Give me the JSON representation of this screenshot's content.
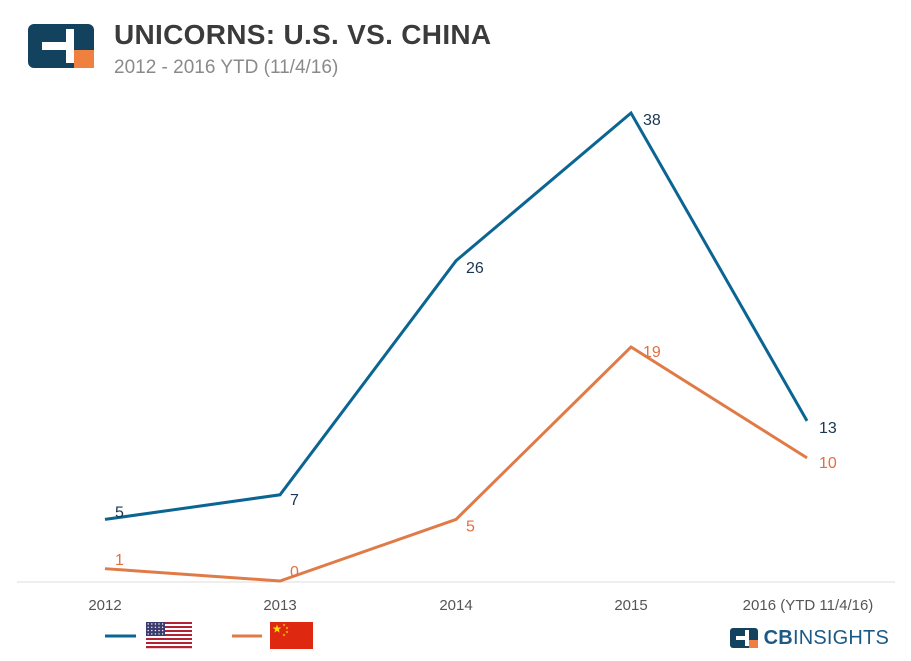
{
  "header": {
    "title": "UNICORNS: U.S. VS. CHINA",
    "subtitle": "2012 - 2016 YTD (11/4/16)"
  },
  "brand": {
    "logo_icon": "cb-insights-logo-icon",
    "text_bold": "CB",
    "text_regular": "INSIGHTS"
  },
  "colors": {
    "us": "#0b6593",
    "china": "#e07b47",
    "us_label": "#1a3550",
    "china_label": "#e07040",
    "axis_text": "#555555",
    "logo_navy": "#13425f",
    "logo_orange": "#f08040"
  },
  "chart_data": {
    "type": "line",
    "title": "UNICORNS: U.S. VS. CHINA",
    "subtitle": "2012 - 2016 YTD (11/4/16)",
    "xlabel": "",
    "ylabel": "",
    "ylim": [
      0,
      38
    ],
    "grid": false,
    "categories": [
      "2012",
      "2013",
      "2014",
      "2015",
      "2016 (YTD 11/4/16)"
    ],
    "series": [
      {
        "name": "U.S.",
        "legend_icon": "us-flag-icon",
        "values": [
          5,
          7,
          26,
          38,
          13
        ]
      },
      {
        "name": "China",
        "legend_icon": "china-flag-icon",
        "values": [
          1,
          0,
          5,
          19,
          10
        ]
      }
    ]
  }
}
